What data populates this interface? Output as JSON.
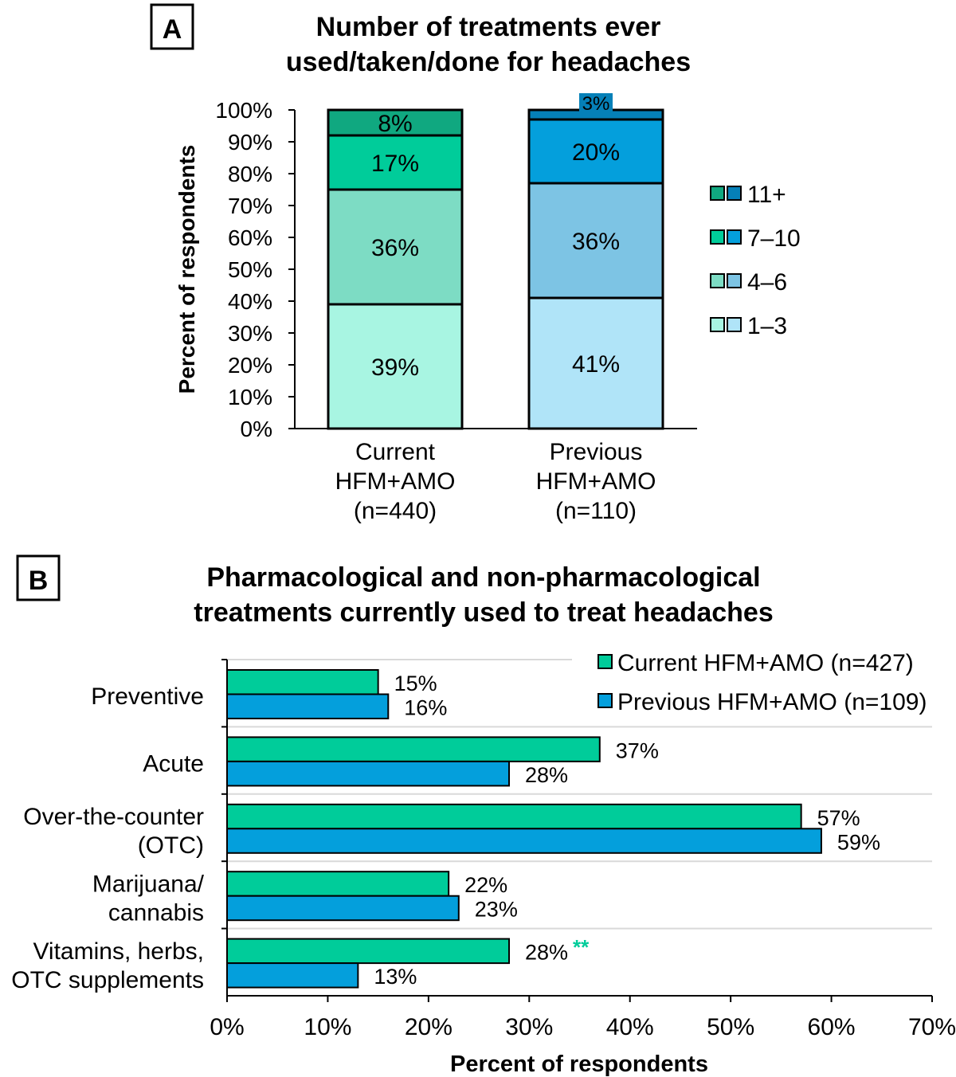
{
  "chart_data": [
    {
      "panel_label": "A",
      "type": "bar",
      "stacked": true,
      "title_lines": [
        "Number of treatments ever",
        "used/taken/done for headaches"
      ],
      "ylabel": "Percent of respondents",
      "ylim": [
        0,
        100
      ],
      "yticks": [
        "0%",
        "10%",
        "20%",
        "30%",
        "40%",
        "50%",
        "60%",
        "70%",
        "80%",
        "90%",
        "100%"
      ],
      "categories": [
        [
          "Current",
          "HFM+AMO",
          "(n=440)"
        ],
        [
          "Previous",
          "HFM+AMO",
          "(n=110)"
        ]
      ],
      "series": [
        {
          "name": "1–3",
          "values": [
            39,
            41
          ],
          "labels": [
            "39%",
            "41%"
          ],
          "colors": [
            "#a8f5e2",
            "#b0e4f8"
          ]
        },
        {
          "name": "4–6",
          "values": [
            36,
            36
          ],
          "labels": [
            "36%",
            "36%"
          ],
          "colors": [
            "#7ddcc4",
            "#7dc4e4"
          ]
        },
        {
          "name": "7–10",
          "values": [
            17,
            20
          ],
          "labels": [
            "17%",
            "20%"
          ],
          "colors": [
            "#00cc9a",
            "#049fdc"
          ]
        },
        {
          "name": "11+",
          "values": [
            8,
            3
          ],
          "labels": [
            "8%",
            "3%"
          ],
          "colors": [
            "#10a880",
            "#0580b8"
          ]
        }
      ],
      "legend_order": [
        "11+",
        "7–10",
        "4–6",
        "1–3"
      ],
      "legend_placement": "right"
    },
    {
      "panel_label": "B",
      "type": "bar",
      "orientation": "horizontal",
      "title_lines": [
        "Pharmacological and non-pharmacological",
        "treatments currently used to treat headaches"
      ],
      "xlabel": "Percent of respondents",
      "xlim": [
        0,
        70
      ],
      "xticks": [
        "0%",
        "10%",
        "20%",
        "30%",
        "40%",
        "50%",
        "60%",
        "70%"
      ],
      "categories": [
        [
          "Preventive"
        ],
        [
          "Acute"
        ],
        [
          "Over-the-counter",
          "(OTC)"
        ],
        [
          "Marijuana/",
          "cannabis"
        ],
        [
          "Vitamins, herbs,",
          "OTC supplements"
        ]
      ],
      "series": [
        {
          "name": "Current HFM+AMO (n=427)",
          "color": "#00cc9a",
          "values": [
            15,
            37,
            57,
            22,
            28
          ],
          "labels": [
            "15%",
            "37%",
            "57%",
            "22%",
            "28%"
          ]
        },
        {
          "name": "Previous HFM+AMO (n=109)",
          "color": "#049fdc",
          "values": [
            16,
            28,
            59,
            23,
            13
          ],
          "labels": [
            "16%",
            "28%",
            "59%",
            "23%",
            "13%"
          ]
        }
      ],
      "annotations": [
        {
          "category": "Vitamins, herbs, OTC supplements",
          "series": "Current HFM+AMO (n=427)",
          "text": "**",
          "color": "#00cc9a"
        }
      ],
      "gridlines": true,
      "legend_placement": "top-right"
    }
  ]
}
